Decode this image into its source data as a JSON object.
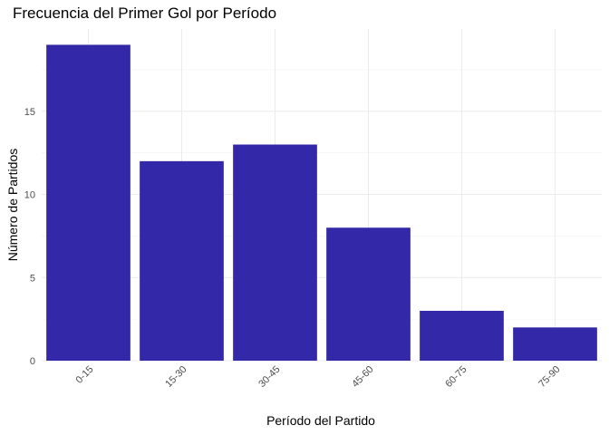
{
  "chart_data": {
    "type": "bar",
    "title": "Frecuencia del Primer Gol por Período",
    "xlabel": "Período del Partido",
    "ylabel": "Número de Partidos",
    "categories": [
      "0-15",
      "15-30",
      "30-45",
      "45-60",
      "60-75",
      "75-90"
    ],
    "values": [
      19,
      12,
      13,
      8,
      3,
      2
    ],
    "ylim": [
      0,
      19.95
    ],
    "yticks": [
      0,
      5,
      10,
      15
    ],
    "bar_color": "#3329A8",
    "grid": true,
    "legend": "none"
  }
}
